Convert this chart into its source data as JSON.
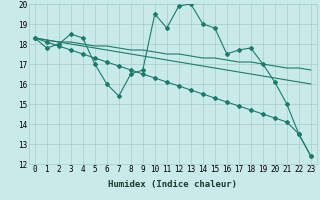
{
  "xlabel": "Humidex (Indice chaleur)",
  "x_values": [
    0,
    1,
    2,
    3,
    4,
    5,
    6,
    7,
    8,
    9,
    10,
    11,
    12,
    13,
    14,
    15,
    16,
    17,
    18,
    19,
    20,
    21,
    22,
    23
  ],
  "series1": [
    18.3,
    17.8,
    18.0,
    18.5,
    18.3,
    17.0,
    16.0,
    15.4,
    16.5,
    16.7,
    19.5,
    18.8,
    19.9,
    20.0,
    19.0,
    18.8,
    17.5,
    17.7,
    17.8,
    17.0,
    16.1,
    15.0,
    13.5,
    12.4
  ],
  "series2": [
    18.3,
    18.2,
    18.1,
    18.1,
    18.0,
    17.9,
    17.9,
    17.8,
    17.7,
    17.7,
    17.6,
    17.5,
    17.5,
    17.4,
    17.3,
    17.3,
    17.2,
    17.1,
    17.1,
    17.0,
    16.9,
    16.8,
    16.8,
    16.7
  ],
  "series3": [
    18.3,
    18.2,
    18.1,
    18.0,
    17.9,
    17.8,
    17.7,
    17.6,
    17.5,
    17.4,
    17.3,
    17.2,
    17.1,
    17.0,
    16.9,
    16.8,
    16.7,
    16.6,
    16.5,
    16.4,
    16.3,
    16.2,
    16.1,
    16.0
  ],
  "series4": [
    18.3,
    18.1,
    17.9,
    17.7,
    17.5,
    17.3,
    17.1,
    16.9,
    16.7,
    16.5,
    16.3,
    16.1,
    15.9,
    15.7,
    15.5,
    15.3,
    15.1,
    14.9,
    14.7,
    14.5,
    14.3,
    14.1,
    13.5,
    12.4
  ],
  "line_color": "#1e7b6a",
  "bg_color": "#c8eae8",
  "grid_color": "#a8cec9",
  "ylim": [
    12,
    20
  ],
  "yticks": [
    12,
    13,
    14,
    15,
    16,
    17,
    18,
    19,
    20
  ],
  "xticks": [
    0,
    1,
    2,
    3,
    4,
    5,
    6,
    7,
    8,
    9,
    10,
    11,
    12,
    13,
    14,
    15,
    16,
    17,
    18,
    19,
    20,
    21,
    22,
    23
  ],
  "xlabel_fontsize": 6.5,
  "tick_fontsize": 5.5,
  "marker": "D",
  "markersize": 2.0,
  "linewidth": 0.8
}
